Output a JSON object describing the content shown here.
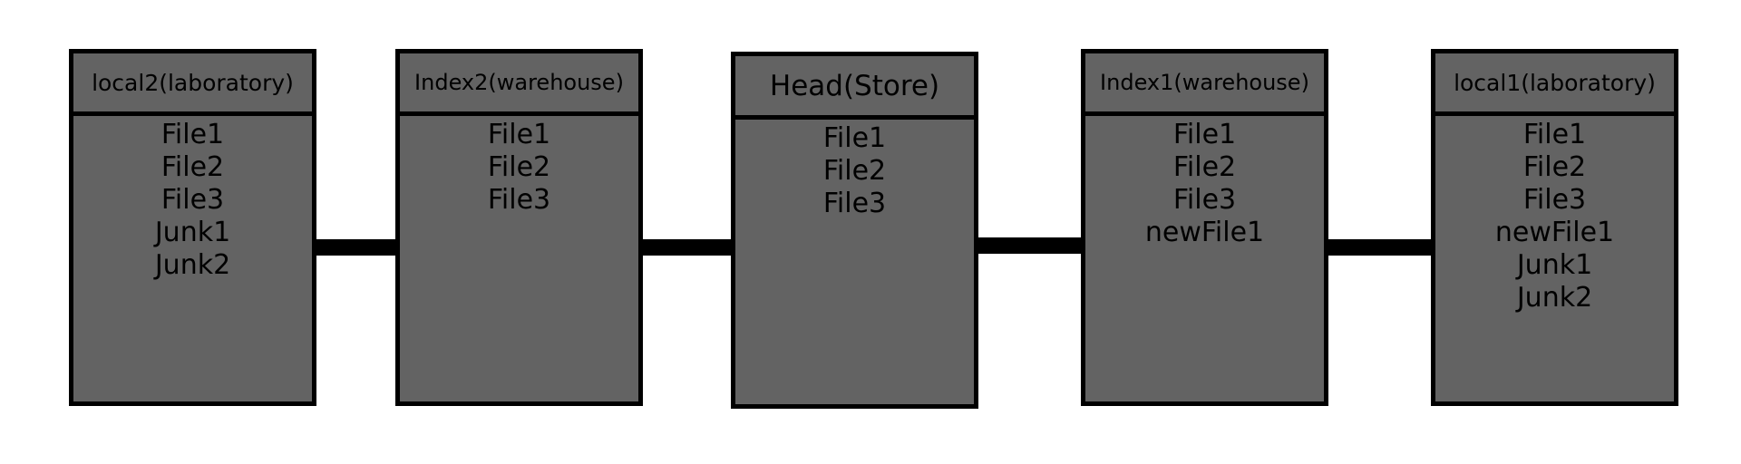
{
  "colors": {
    "box_fill": "#636363",
    "border": "#000000",
    "background": "#ffffff"
  },
  "boxes": [
    {
      "title": "local2(laboratory)",
      "items": [
        "File1",
        "File2",
        "File3",
        "Junk1",
        "Junk2"
      ]
    },
    {
      "title": "Index2(warehouse)",
      "items": [
        "File1",
        "File2",
        "File3"
      ]
    },
    {
      "title": "Head(Store)",
      "items": [
        "File1",
        "File2",
        "File3"
      ]
    },
    {
      "title": "Index1(warehouse)",
      "items": [
        "File1",
        "File2",
        "File3",
        "newFile1"
      ]
    },
    {
      "title": "local1(laboratory)",
      "items": [
        "File1",
        "File2",
        "File3",
        "newFile1",
        "Junk1",
        "Junk2"
      ]
    }
  ]
}
